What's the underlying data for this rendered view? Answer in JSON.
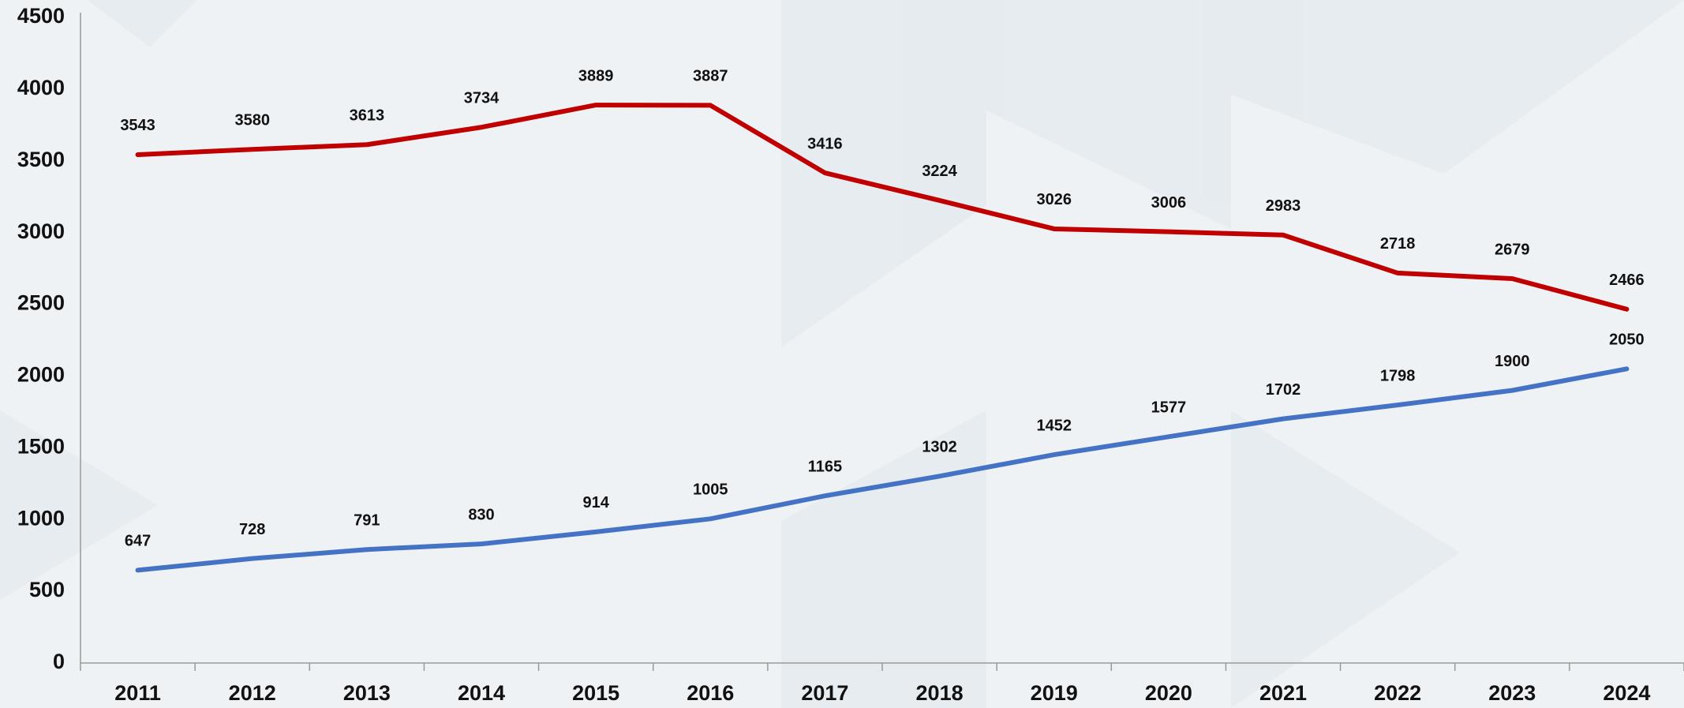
{
  "chart_data": {
    "type": "line",
    "categories": [
      "2011",
      "2012",
      "2013",
      "2014",
      "2015",
      "2016",
      "2017",
      "2018",
      "2019",
      "2020",
      "2021",
      "2022",
      "2023",
      "2024"
    ],
    "series": [
      {
        "color": "#c00000",
        "values": [
          3543,
          3580,
          3613,
          3734,
          3889,
          3887,
          3416,
          3224,
          3026,
          3006,
          2983,
          2718,
          2679,
          2466
        ]
      },
      {
        "color": "#4472c4",
        "values": [
          647,
          728,
          791,
          830,
          914,
          1005,
          1165,
          1302,
          1452,
          1577,
          1702,
          1798,
          1900,
          2050
        ]
      }
    ],
    "ylim": [
      0,
      4500
    ],
    "yticks": [
      0,
      500,
      1000,
      1500,
      2000,
      2500,
      3000,
      3500,
      4000,
      4500
    ],
    "grid": false
  }
}
